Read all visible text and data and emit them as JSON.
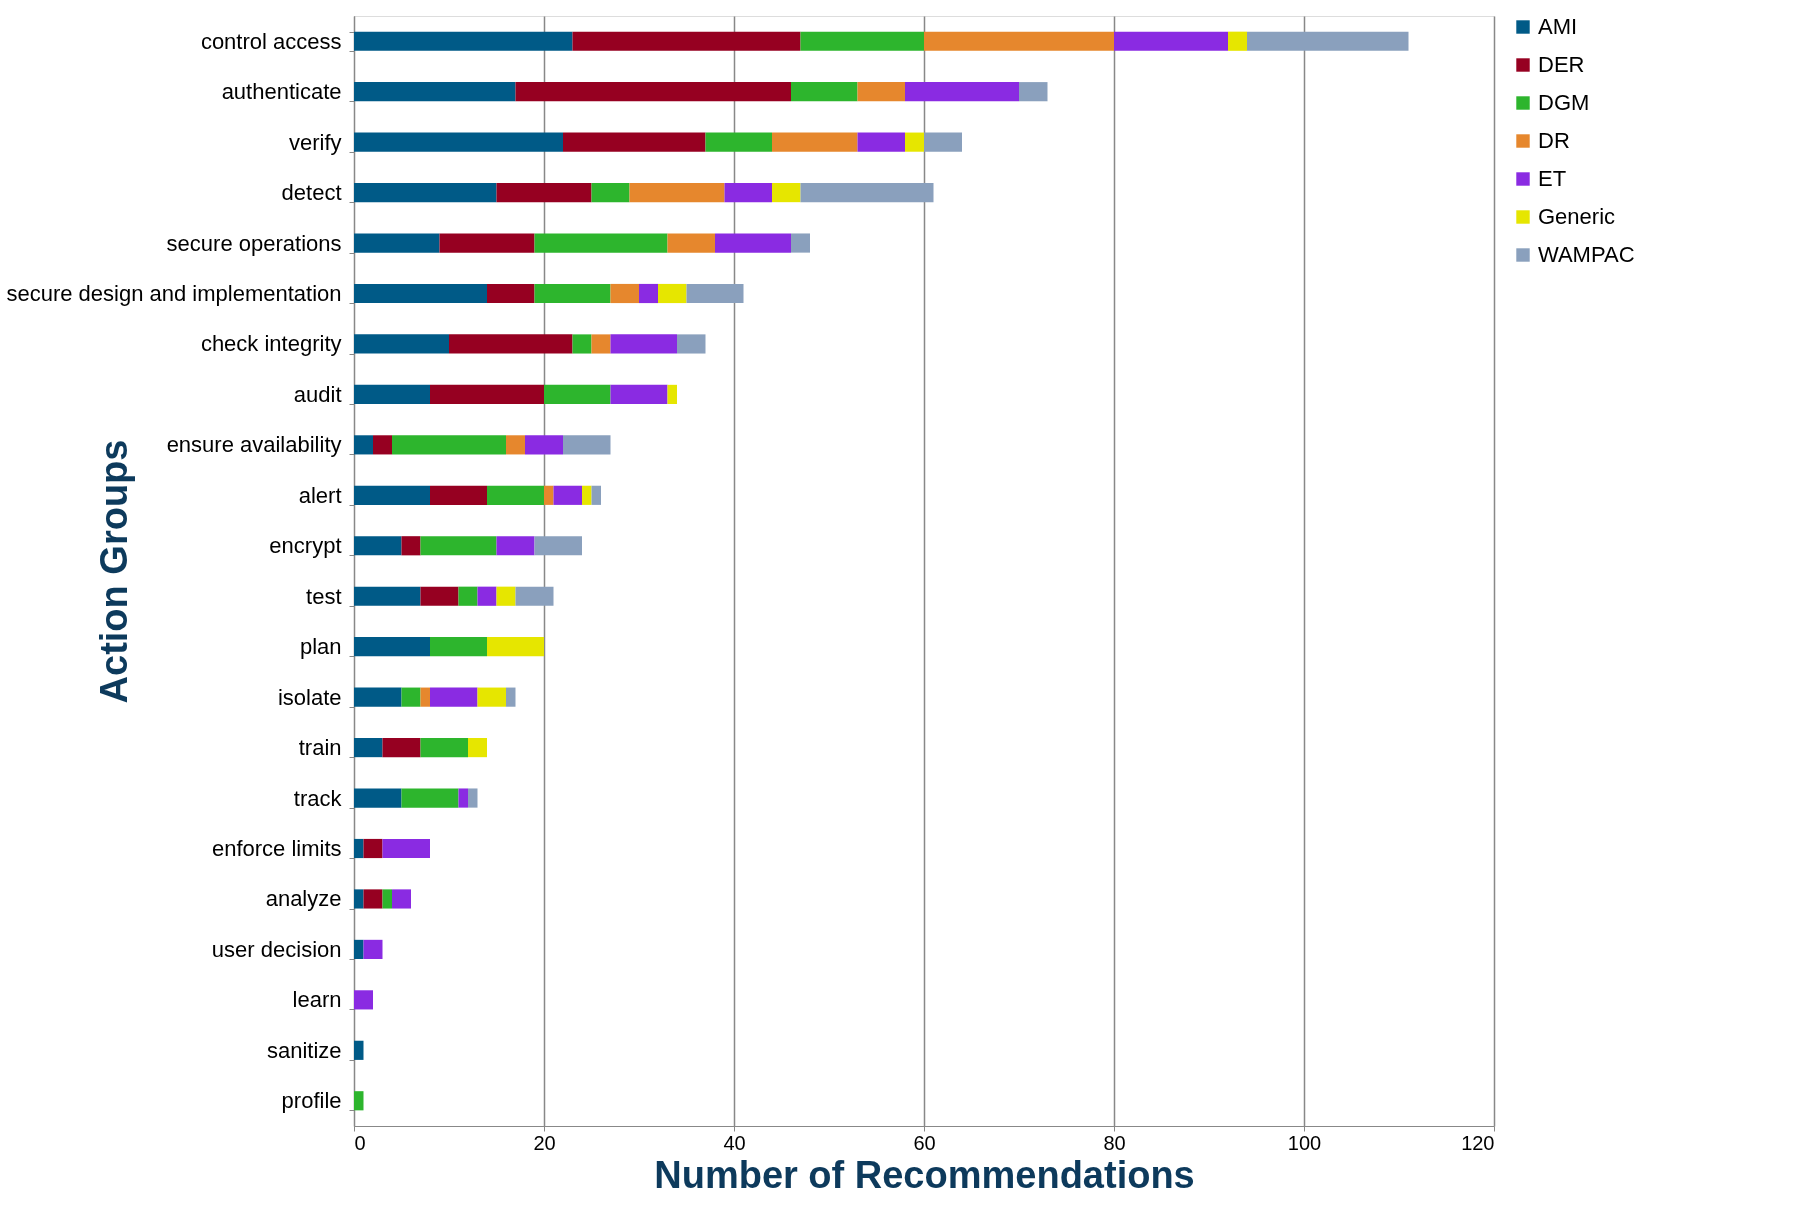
{
  "chart_data": {
    "type": "bar",
    "orientation": "horizontal",
    "stacked": true,
    "xlabel": "Number of Recommendations",
    "ylabel": "Action Groups",
    "categories": [
      "control access",
      "authenticate",
      "verify",
      "detect",
      "secure operations",
      "secure design and implementation",
      "check integrity",
      "audit",
      "ensure availability",
      "alert",
      "encrypt",
      "test",
      "plan",
      "isolate",
      "train",
      "track",
      "enforce limits",
      "analyze",
      "user decision",
      "learn",
      "sanitize",
      "profile"
    ],
    "series": [
      {
        "name": "AMI",
        "color": "#005a87",
        "values": [
          23,
          17,
          22,
          15,
          9,
          14,
          10,
          8,
          2,
          8,
          5,
          7,
          8,
          5,
          3,
          5,
          1,
          1,
          1,
          null,
          1,
          null
        ]
      },
      {
        "name": "DER",
        "color": "#960021",
        "values": [
          24,
          29,
          15,
          10,
          10,
          5,
          13,
          12,
          2,
          6,
          2,
          4,
          null,
          null,
          4,
          null,
          2,
          2,
          null,
          null,
          null,
          null
        ]
      },
      {
        "name": "DGM",
        "color": "#2db52d",
        "values": [
          13,
          7,
          7,
          4,
          14,
          8,
          2,
          7,
          12,
          6,
          8,
          2,
          6,
          2,
          5,
          6,
          null,
          1,
          null,
          null,
          null,
          1
        ]
      },
      {
        "name": "DR",
        "color": "#e6872d",
        "values": [
          20,
          5,
          9,
          10,
          5,
          3,
          2,
          null,
          2,
          1,
          null,
          null,
          null,
          1,
          null,
          null,
          null,
          null,
          null,
          null,
          null,
          null
        ]
      },
      {
        "name": "ET",
        "color": "#8a2be2",
        "values": [
          12,
          12,
          5,
          5,
          8,
          2,
          7,
          6,
          4,
          3,
          4,
          2,
          null,
          5,
          null,
          1,
          5,
          2,
          2,
          2,
          null,
          null
        ]
      },
      {
        "name": "Generic",
        "color": "#e6e600",
        "values": [
          2,
          null,
          2,
          3,
          null,
          3,
          null,
          1,
          null,
          1,
          null,
          2,
          6,
          3,
          2,
          null,
          null,
          null,
          null,
          null,
          null,
          null
        ]
      },
      {
        "name": "WAMPAC",
        "color": "#8aa0bd",
        "values": [
          17,
          3,
          4,
          14,
          2,
          6,
          3,
          null,
          5,
          1,
          5,
          4,
          null,
          1,
          null,
          1,
          null,
          null,
          null,
          null,
          null,
          null
        ]
      }
    ],
    "xlim": [
      0,
      120
    ],
    "xticks": [
      0,
      20,
      40,
      60,
      80,
      100,
      120
    ],
    "grid": "x",
    "legend": "right"
  }
}
